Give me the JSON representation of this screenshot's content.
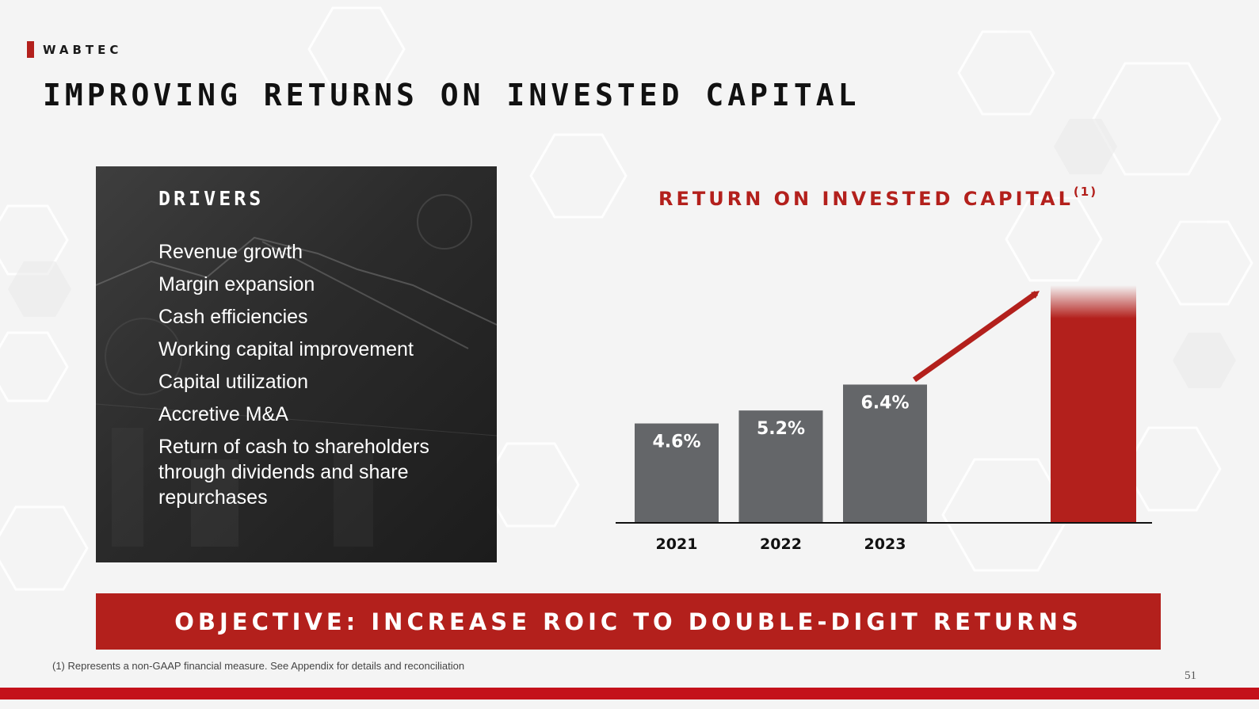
{
  "brand": {
    "name": "WABTEC"
  },
  "title": "IMPROVING RETURNS ON INVESTED CAPITAL",
  "drivers": {
    "heading": "DRIVERS",
    "items": [
      "Revenue growth",
      "Margin expansion",
      "Cash efficiencies",
      "Working capital improvement",
      "Capital utilization",
      "Accretive M&A",
      "Return of cash to shareholders through dividends and share repurchases"
    ]
  },
  "chart_title": {
    "text": "RETURN ON INVESTED CAPITAL",
    "superscript": "(1)"
  },
  "chart_data": {
    "type": "bar",
    "categories": [
      "2021",
      "2022",
      "2023"
    ],
    "values": [
      4.6,
      5.2,
      6.4
    ],
    "value_labels": [
      "4.6%",
      "5.2%",
      "6.4%"
    ],
    "ylim": [
      0,
      11
    ],
    "target": {
      "value": 11,
      "label": "",
      "color": "#b3201c"
    },
    "bar_color": "#646669",
    "trend_arrow": true,
    "grid": false
  },
  "objective": "OBJECTIVE: INCREASE ROIC TO DOUBLE-DIGIT RETURNS",
  "footnote": "(1) Represents a non-GAAP financial measure.  See Appendix for details and reconciliation",
  "page_number": "51",
  "colors": {
    "accent": "#b3201c",
    "bar": "#646669",
    "stripe": "#c4111a"
  }
}
